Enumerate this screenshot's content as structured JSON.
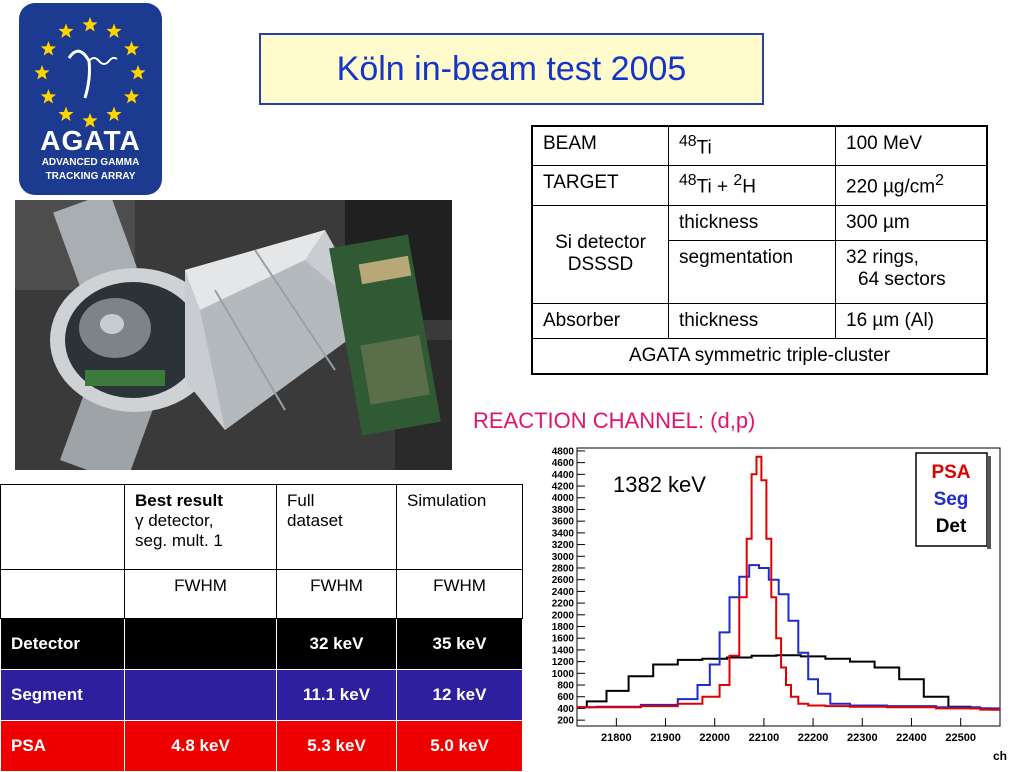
{
  "logo": {
    "name": "AGATA",
    "line1": "ADVANCED GAMMA",
    "line2": "TRACKING ARRAY",
    "bg_color": "#1c3a8f",
    "star_color": "#ffd400"
  },
  "title": "Köln in-beam test 2005",
  "setup_table": {
    "beam": {
      "label": "BEAM",
      "nucleus_mass": "48",
      "nucleus": "Ti",
      "energy": "100 MeV"
    },
    "target": {
      "label": "TARGET",
      "m1": "48",
      "n1": "Ti",
      "plus": " + ",
      "m2": "2",
      "n2": "H",
      "density": "220 µg/cm",
      "density_exp": "2"
    },
    "si": {
      "label1": "Si detector",
      "label2": "DSSSD",
      "thickness_label": "thickness",
      "thickness": "300 µm",
      "segmentation_label": "segmentation",
      "seg1": "32 rings,",
      "seg2": "64 sectors"
    },
    "absorber": {
      "label": "Absorber",
      "thickness_label": "thickness",
      "thickness": "16 µm (Al)"
    },
    "footer": "AGATA symmetric triple-cluster"
  },
  "reaction_channel": "REACTION CHANNEL: (d,p)",
  "results_table": {
    "header": {
      "best_title": "Best result",
      "best_sub1": "γ detector,",
      "best_sub2": "seg. mult. 1",
      "full1": "Full",
      "full2": "dataset",
      "sim": "Simulation"
    },
    "fwhm": [
      "FWHM",
      "FWHM",
      "FWHM"
    ],
    "rows": [
      {
        "label": "Detector",
        "best": "",
        "full": "32 keV",
        "sim": "35 keV"
      },
      {
        "label": "Segment",
        "best": "",
        "full": "11.1 keV",
        "sim": "12 keV"
      },
      {
        "label": "PSA",
        "best": "4.8 keV",
        "full": "5.3 keV",
        "sim": "5.0 keV"
      }
    ]
  },
  "chart_data": {
    "type": "line",
    "title": "",
    "annotation": "1382 keV",
    "xlabel": "ch",
    "ylabel": "",
    "xlim": [
      21720,
      22580
    ],
    "ylim": [
      100,
      4850
    ],
    "xticks": [
      21800,
      21900,
      22000,
      22100,
      22200,
      22300,
      22400,
      22500
    ],
    "yticks": [
      200,
      400,
      600,
      800,
      1000,
      1200,
      1400,
      1600,
      1800,
      2000,
      2200,
      2400,
      2600,
      2800,
      3000,
      3200,
      3400,
      3600,
      3800,
      4000,
      4200,
      4400,
      4600,
      4800
    ],
    "legend": {
      "placement": "top-right",
      "entries": [
        {
          "name": "PSA",
          "color": "#e00000"
        },
        {
          "name": "Seg",
          "color": "#1f2bcc"
        },
        {
          "name": "Det",
          "color": "#000000"
        }
      ]
    },
    "series": [
      {
        "name": "PSA",
        "color": "#e00000",
        "x": [
          21720,
          21800,
          21900,
          21950,
          22000,
          22020,
          22040,
          22060,
          22070,
          22080,
          22090,
          22100,
          22110,
          22120,
          22130,
          22140,
          22150,
          22160,
          22180,
          22200,
          22250,
          22300,
          22400,
          22500,
          22580
        ],
        "y": [
          420,
          420,
          440,
          480,
          600,
          800,
          1300,
          2300,
          3300,
          4400,
          4700,
          4300,
          3300,
          2300,
          1600,
          1100,
          800,
          600,
          480,
          450,
          440,
          430,
          420,
          400,
          380
        ]
      },
      {
        "name": "Seg",
        "color": "#1f2bcc",
        "x": [
          21720,
          21800,
          21900,
          21950,
          21980,
          22000,
          22020,
          22040,
          22060,
          22080,
          22100,
          22120,
          22140,
          22160,
          22180,
          22200,
          22220,
          22250,
          22300,
          22400,
          22500,
          22580
        ],
        "y": [
          420,
          430,
          460,
          560,
          800,
          1150,
          1700,
          2300,
          2650,
          2850,
          2800,
          2600,
          2350,
          1900,
          1350,
          900,
          650,
          480,
          450,
          440,
          420,
          400
        ]
      },
      {
        "name": "Det",
        "color": "#000000",
        "x": [
          21720,
          21760,
          21800,
          21850,
          21900,
          21950,
          22000,
          22050,
          22100,
          22150,
          22200,
          22250,
          22300,
          22350,
          22400,
          22450,
          22500,
          22540,
          22580
        ],
        "y": [
          420,
          520,
          700,
          950,
          1150,
          1230,
          1250,
          1270,
          1300,
          1310,
          1290,
          1250,
          1200,
          1100,
          900,
          600,
          430,
          400,
          380
        ]
      }
    ]
  }
}
